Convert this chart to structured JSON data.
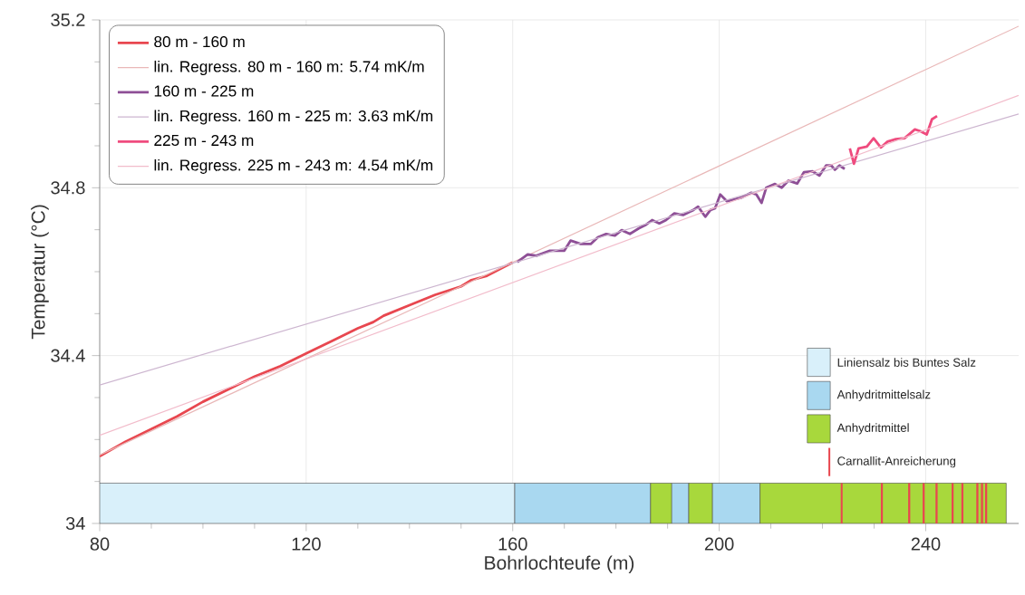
{
  "chart_data": {
    "type": "line",
    "xlabel": "Bohrlochteufe (m)",
    "ylabel": "Temperatur (°C)",
    "xlim": [
      80,
      258
    ],
    "ylim": [
      34,
      35.2
    ],
    "xticks": [
      80,
      120,
      160,
      200,
      240
    ],
    "yticks": [
      {
        "value": 34,
        "label": "34"
      },
      34.4,
      34.8,
      35.2
    ],
    "grid": true,
    "legend": "top left",
    "marker": "none",
    "line_style": "solid",
    "series": [
      {
        "name": "80 m - 160 m",
        "color": "#e8474f",
        "x": [
          80,
          85,
          90,
          95,
          100,
          105,
          110,
          115,
          120,
          125,
          130,
          133,
          135,
          140,
          145,
          150,
          152,
          155,
          160
        ],
        "values": [
          34.16,
          34.195,
          34.225,
          34.255,
          34.29,
          34.32,
          34.35,
          34.375,
          34.405,
          34.435,
          34.465,
          34.48,
          34.495,
          34.52,
          34.545,
          34.565,
          34.58,
          34.59,
          34.622
        ]
      },
      {
        "name": "lin. Regress. 80 m - 160 m: 5.74 mK/m",
        "color": "#e9b8b8",
        "x": [
          80,
          258
        ],
        "values": [
          34.163,
          35.185
        ]
      },
      {
        "name": "160 m - 225 m",
        "color": "#8e4f96",
        "x": [
          160.9,
          162.9,
          164.6,
          167.2,
          170,
          171.2,
          173.2,
          175.1,
          176.5,
          178.1,
          179.8,
          181.1,
          182.7,
          184.4,
          185.7,
          187,
          188.4,
          189.7,
          191.3,
          193,
          195,
          195.9,
          197.3,
          198.3,
          199.2,
          200.2,
          201.5,
          204.2,
          206.2,
          207.2,
          208.2,
          209.1,
          210.8,
          212.1,
          213.4,
          215.1,
          216.4,
          218.1,
          219.4,
          220.7,
          221.7,
          222.4,
          223.3,
          224.3
        ],
        "values": [
          34.623,
          34.641,
          34.638,
          34.65,
          34.65,
          34.674,
          34.666,
          34.666,
          34.682,
          34.69,
          34.686,
          34.699,
          34.69,
          34.703,
          34.711,
          34.723,
          34.715,
          34.723,
          34.739,
          34.735,
          34.747,
          34.755,
          34.731,
          34.747,
          34.751,
          34.784,
          34.768,
          34.776,
          34.788,
          34.784,
          34.764,
          34.8,
          34.809,
          34.8,
          34.817,
          34.81,
          34.837,
          34.839,
          34.829,
          34.853,
          34.853,
          34.843,
          34.853,
          34.845
        ]
      },
      {
        "name": "lin. Regress. 160 m - 225 m: 3.63 mK/m",
        "color": "#cdb6d0",
        "x": [
          80,
          258
        ],
        "values": [
          34.33,
          34.976
        ]
      },
      {
        "name": "225 m - 243 m",
        "color": "#ef4b7e",
        "x": [
          225.3,
          226.1,
          227,
          228.6,
          229.9,
          231.3,
          232.6,
          234.2,
          235.9,
          237.9,
          238.9,
          240.2,
          241.2,
          242.2
        ],
        "values": [
          34.894,
          34.857,
          34.894,
          34.898,
          34.918,
          34.896,
          34.91,
          34.916,
          34.918,
          34.939,
          34.935,
          34.927,
          34.963,
          34.971
        ]
      },
      {
        "name": "lin. Regress. 225 m - 243 m: 4.54 mK/m",
        "color": "#f2bccb",
        "x": [
          80,
          258
        ],
        "values": [
          34.21,
          35.02
        ]
      }
    ],
    "bands": [
      {
        "axis": "x",
        "from": 80,
        "to": 160.4,
        "label": "Liniensalz bis Buntes Salz",
        "color": "#d9f0fa"
      },
      {
        "axis": "x",
        "from": 160.4,
        "to": 186.7,
        "label": "Anhydritmittelsalz",
        "color": "#a9d8f0"
      },
      {
        "axis": "x",
        "from": 186.7,
        "to": 190.8,
        "label": "Anhydritmittel",
        "color": "#a8d83c"
      },
      {
        "axis": "x",
        "from": 190.8,
        "to": 194.1,
        "color": "#a9d8f0"
      },
      {
        "axis": "x",
        "from": 194.1,
        "to": 198.7,
        "color": "#a8d83c"
      },
      {
        "axis": "x",
        "from": 198.7,
        "to": 207.9,
        "color": "#a9d8f0"
      },
      {
        "axis": "x",
        "from": 207.9,
        "to": 255.6,
        "color": "#a8d83c"
      },
      {
        "axis": "x",
        "from": 223.5,
        "to": 223.9,
        "label": "Carnallit-Anreicherung",
        "color": "#e8474f"
      },
      {
        "axis": "x",
        "from": 231.3,
        "to": 231.7,
        "color": "#e8474f"
      },
      {
        "axis": "x",
        "from": 236.6,
        "to": 237.0,
        "color": "#e8474f"
      },
      {
        "axis": "x",
        "from": 239.4,
        "to": 239.8,
        "color": "#e8474f"
      },
      {
        "axis": "x",
        "from": 241.9,
        "to": 242.3,
        "color": "#e8474f"
      },
      {
        "axis": "x",
        "from": 245.0,
        "to": 245.4,
        "color": "#e8474f"
      },
      {
        "axis": "x",
        "from": 246.9,
        "to": 247.3,
        "color": "#e8474f"
      },
      {
        "axis": "x",
        "from": 249.8,
        "to": 250.2,
        "color": "#e8474f"
      },
      {
        "axis": "x",
        "from": 250.7,
        "to": 251.1,
        "color": "#e8474f"
      },
      {
        "axis": "x",
        "from": 251.5,
        "to": 251.9,
        "color": "#e8474f"
      }
    ]
  }
}
